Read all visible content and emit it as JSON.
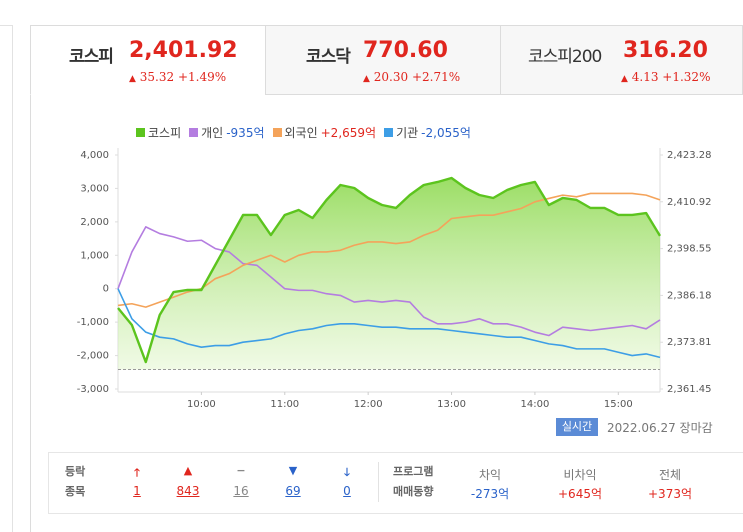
{
  "tabs": [
    {
      "name": "코스피",
      "value": "2,401.92",
      "change": "35.32",
      "rate": "+1.49%"
    },
    {
      "name": "코스닥",
      "value": "770.60",
      "change": "20.30",
      "rate": "+2.71%"
    },
    {
      "name": "코스피200",
      "value": "316.20",
      "change": "4.13",
      "rate": "+1.32%"
    }
  ],
  "chart_data": {
    "type": "line",
    "x": [
      540,
      550,
      560,
      570,
      580,
      590,
      600,
      610,
      620,
      630,
      640,
      650,
      660,
      670,
      680,
      690,
      700,
      710,
      720,
      730,
      740,
      750,
      760,
      770,
      780,
      790,
      800,
      810,
      820,
      830,
      840,
      850,
      860,
      870,
      880,
      890,
      900,
      910,
      920,
      930
    ],
    "xlim": [
      540,
      930
    ],
    "xticks": [
      {
        "value": 600,
        "label": "10:00"
      },
      {
        "value": 660,
        "label": "11:00"
      },
      {
        "value": 720,
        "label": "12:00"
      },
      {
        "value": 780,
        "label": "13:00"
      },
      {
        "value": 840,
        "label": "14:00"
      },
      {
        "value": 900,
        "label": "15:00"
      }
    ],
    "ylim": [
      -3000,
      4000
    ],
    "yticks": [
      {
        "value": 4000,
        "label": "4,000"
      },
      {
        "value": 3000,
        "label": "3,000"
      },
      {
        "value": 2000,
        "label": "2,000"
      },
      {
        "value": 1000,
        "label": "1,000"
      },
      0,
      {
        "value": -1000,
        "label": "-1,000"
      },
      {
        "value": -2000,
        "label": "-2,000"
      },
      {
        "value": -3000,
        "label": "-3,000"
      }
    ],
    "y2lim": [
      2361.45,
      2423.28
    ],
    "y2ticks": [
      {
        "value": 2423.28,
        "label": "2,423.28"
      },
      {
        "value": 2410.92,
        "label": "2,410.92"
      },
      {
        "value": 2398.55,
        "label": "2,398.55"
      },
      {
        "value": 2386.18,
        "label": "2,386.18"
      },
      {
        "value": 2373.81,
        "label": "2,373.81"
      },
      {
        "value": 2361.45,
        "label": "2,361.45"
      }
    ],
    "reference_line": 2366.6,
    "series": [
      {
        "name": "코스피",
        "color": "#5cc41e",
        "axis": "y2",
        "area": true,
        "values": [
          2382.85,
          2378.36,
          2368.58,
          2381.0,
          2387.08,
          2387.61,
          2387.61,
          2394.21,
          2400.82,
          2407.43,
          2407.43,
          2402.14,
          2407.43,
          2408.75,
          2406.63,
          2411.39,
          2415.35,
          2414.56,
          2411.92,
          2410.07,
          2409.28,
          2412.71,
          2415.35,
          2416.15,
          2417.2,
          2414.56,
          2412.71,
          2411.92,
          2414.03,
          2415.35,
          2416.15,
          2410.07,
          2411.92,
          2411.39,
          2409.28,
          2409.28,
          2407.43,
          2407.43,
          2407.95,
          2401.92
        ]
      },
      {
        "name": "개인",
        "color": "#b47de0",
        "legend_label": "-935억",
        "values": [
          0,
          1100,
          1850,
          1650,
          1550,
          1420,
          1450,
          1200,
          1100,
          750,
          700,
          350,
          0,
          -50,
          -50,
          -150,
          -200,
          -400,
          -350,
          -400,
          -350,
          -400,
          -850,
          -1050,
          -1050,
          -1000,
          -900,
          -1050,
          -1050,
          -1150,
          -1300,
          -1400,
          -1150,
          -1200,
          -1250,
          -1200,
          -1150,
          -1100,
          -1200,
          -935
        ]
      },
      {
        "name": "외국인",
        "color": "#f4a35a",
        "legend_label": "+2,659억",
        "values": [
          -500,
          -450,
          -550,
          -400,
          -250,
          -100,
          0,
          300,
          450,
          700,
          850,
          1000,
          800,
          1000,
          1100,
          1100,
          1150,
          1300,
          1400,
          1400,
          1350,
          1400,
          1600,
          1750,
          2100,
          2150,
          2200,
          2200,
          2300,
          2400,
          2600,
          2700,
          2800,
          2750,
          2850,
          2850,
          2850,
          2850,
          2800,
          2659
        ]
      },
      {
        "name": "기관",
        "color": "#3d9ee6",
        "legend_label": "-2,055억",
        "values": [
          0,
          -900,
          -1300,
          -1450,
          -1500,
          -1650,
          -1750,
          -1700,
          -1700,
          -1600,
          -1550,
          -1500,
          -1350,
          -1250,
          -1200,
          -1100,
          -1050,
          -1050,
          -1100,
          -1150,
          -1150,
          -1200,
          -1200,
          -1200,
          -1250,
          -1300,
          -1350,
          -1400,
          -1450,
          -1450,
          -1550,
          -1650,
          -1700,
          -1800,
          -1800,
          -1800,
          -1900,
          -2000,
          -1950,
          -2055
        ]
      }
    ]
  },
  "status": {
    "badge": "실시간",
    "date": "2022.06.27",
    "state": "장마감"
  },
  "breadth": {
    "label_lines": [
      "등락",
      "종목"
    ],
    "counts": [
      1,
      843,
      16,
      69,
      0
    ]
  },
  "program": {
    "label_lines": [
      "프로그램",
      "매매동향"
    ],
    "columns": [
      {
        "name": "차익",
        "value": "-273억"
      },
      {
        "name": "비차익",
        "value": "+645억"
      },
      {
        "name": "전체",
        "value": "+373억"
      }
    ]
  }
}
